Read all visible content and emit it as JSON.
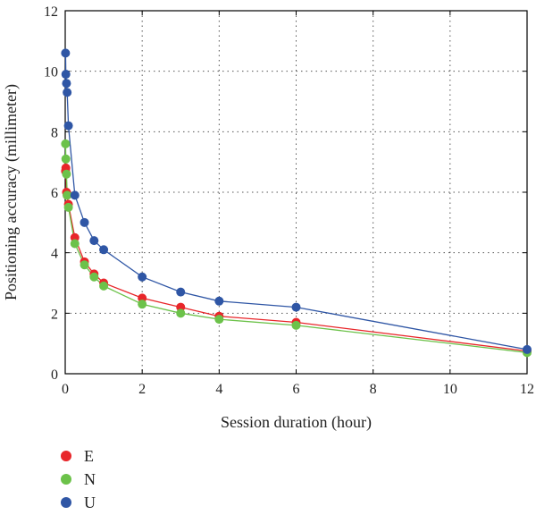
{
  "chart_data": {
    "type": "line",
    "xlabel": "Session duration (hour)",
    "ylabel": "Positioning accuracy (millimeter)",
    "xlim": [
      0,
      12
    ],
    "ylim": [
      0,
      12
    ],
    "xticks": [
      0,
      2,
      4,
      6,
      8,
      10,
      12
    ],
    "yticks": [
      0,
      2,
      4,
      6,
      8,
      10,
      12
    ],
    "grid": true,
    "legend_position": "bottom-left",
    "series": [
      {
        "name": "E",
        "color": "#e8262a",
        "x": [
          0.0083,
          0.0167,
          0.0333,
          0.05,
          0.0833,
          0.25,
          0.5,
          0.75,
          1,
          2,
          3,
          4,
          6,
          12
        ],
        "y": [
          6.7,
          6.8,
          6.0,
          5.9,
          5.6,
          4.5,
          3.7,
          3.3,
          3.0,
          2.5,
          2.2,
          1.9,
          1.7,
          0.75
        ]
      },
      {
        "name": "N",
        "color": "#6cc24a",
        "x": [
          0.0083,
          0.0167,
          0.0333,
          0.05,
          0.0833,
          0.25,
          0.5,
          0.75,
          1,
          2,
          3,
          4,
          6,
          12
        ],
        "y": [
          7.6,
          7.1,
          6.6,
          5.9,
          5.5,
          4.3,
          3.6,
          3.2,
          2.9,
          2.3,
          2.0,
          1.8,
          1.6,
          0.7
        ]
      },
      {
        "name": "U",
        "color": "#2f56a5",
        "x": [
          0.0083,
          0.0167,
          0.0333,
          0.05,
          0.0833,
          0.25,
          0.5,
          0.75,
          1,
          2,
          3,
          4,
          6,
          12
        ],
        "y": [
          10.6,
          9.9,
          9.6,
          9.3,
          8.2,
          5.9,
          5.0,
          4.4,
          4.1,
          3.2,
          2.7,
          2.4,
          2.2,
          0.8
        ]
      }
    ]
  }
}
